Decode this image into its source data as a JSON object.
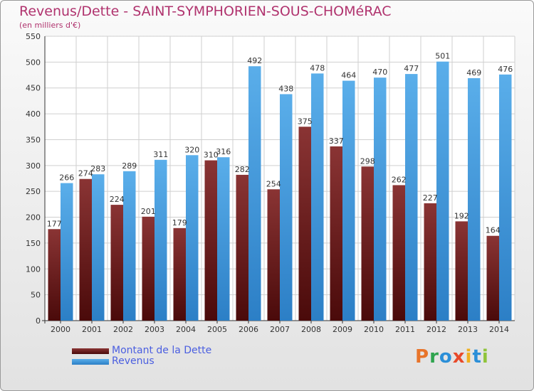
{
  "header": {
    "title": "Revenus/Dette - SAINT-SYMPHORIEN-SOUS-CHOMéRAC",
    "subtitle": "(en milliers d'€)"
  },
  "logo": {
    "text": "Proxiti"
  },
  "colors": {
    "title": "#b0336e",
    "dette": "#7a2a2a",
    "revenus": "#4ea4e6",
    "legend_text": "#4a5ee0"
  },
  "chart_data": {
    "type": "bar",
    "title": "Revenus/Dette - SAINT-SYMPHORIEN-SOUS-CHOMéRAC",
    "subtitle": "(en milliers d'€)",
    "categories": [
      "2000",
      "2001",
      "2002",
      "2003",
      "2004",
      "2005",
      "2006",
      "2007",
      "2008",
      "2009",
      "2010",
      "2011",
      "2012",
      "2013",
      "2014"
    ],
    "series": [
      {
        "name": "Montant de la Dette",
        "values": [
          177,
          274,
          224,
          201,
          179,
          310,
          282,
          254,
          375,
          337,
          298,
          262,
          227,
          192,
          164
        ]
      },
      {
        "name": "Revenus",
        "values": [
          266,
          283,
          289,
          311,
          320,
          316,
          492,
          438,
          478,
          464,
          470,
          477,
          501,
          469,
          476
        ]
      }
    ],
    "yticks": [
      0,
      50,
      100,
      150,
      200,
      250,
      300,
      350,
      400,
      450,
      500,
      550
    ],
    "ylim": [
      0,
      550
    ],
    "grid": true,
    "legend": "bottom-left"
  }
}
